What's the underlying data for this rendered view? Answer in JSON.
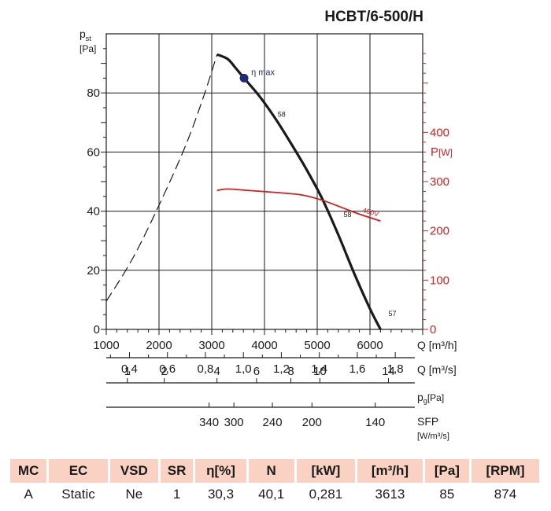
{
  "title": "HCBT/6-500/H",
  "chart_data": {
    "type": "line",
    "title": "HCBT/6-500/H",
    "x_axis": {
      "label": "Q [m³/h]",
      "range": [
        1000,
        7000
      ],
      "ticks": [
        "1000",
        "2000",
        "3000",
        "4000",
        "5000",
        "6000"
      ]
    },
    "y_axis_left": {
      "label_main": "p",
      "label_sub": "st",
      "label_unit": "[Pa]",
      "range": [
        0,
        100
      ],
      "ticks": [
        "0",
        "20",
        "40",
        "60",
        "80"
      ]
    },
    "y_axis_right": {
      "label_main": "P",
      "label_unit": "[W]",
      "range": [
        0,
        600
      ],
      "ticks": [
        "0",
        "100",
        "200",
        "300",
        "400"
      ]
    },
    "secondary_axes": [
      {
        "label": "Q [m³/s]",
        "ticks": [
          {
            "value": 0.4,
            "label": "0,4"
          },
          {
            "value": 0.6,
            "label": "0,6"
          },
          {
            "value": 0.8,
            "label": "0,8"
          },
          {
            "value": 1.0,
            "label": "1,0"
          },
          {
            "value": 1.2,
            "label": "1,2"
          },
          {
            "value": 1.4,
            "label": "1,4"
          },
          {
            "value": 1.6,
            "label": "1,6"
          },
          {
            "value": 1.8,
            "label": "1,8"
          }
        ]
      },
      {
        "label_main": "p",
        "label_sub": "g",
        "label_unit": "[Pa]",
        "ticks": [
          {
            "q": 1400,
            "label": "1"
          },
          {
            "q": 2100,
            "label": "2"
          },
          {
            "q": 3100,
            "label": "4"
          },
          {
            "q": 3850,
            "label": "6"
          },
          {
            "q": 4500,
            "label": "8"
          },
          {
            "q": 5050,
            "label": "10"
          },
          {
            "q": 6350,
            "label": "14"
          }
        ]
      },
      {
        "label": "SFP",
        "unit": "[W/m³/s]",
        "ticks": [
          {
            "q": 2950,
            "label": "340"
          },
          {
            "q": 3420,
            "label": "300"
          },
          {
            "q": 4150,
            "label": "240"
          },
          {
            "q": 4900,
            "label": "200"
          },
          {
            "q": 6100,
            "label": "140"
          }
        ]
      }
    ],
    "series": [
      {
        "kind": "stall-region-dashed",
        "axis": "left",
        "points": [
          [
            1000,
            9.5
          ],
          [
            1500,
            24
          ],
          [
            2000,
            42
          ],
          [
            2500,
            62
          ],
          [
            2850,
            79
          ],
          [
            3100,
            93
          ]
        ]
      },
      {
        "kind": "pressure",
        "axis": "left",
        "points": [
          [
            3100,
            93
          ],
          [
            3300,
            91.5
          ],
          [
            3450,
            88.5
          ],
          [
            3613,
            85
          ],
          [
            3900,
            79
          ],
          [
            4200,
            71.5
          ],
          [
            4500,
            63
          ],
          [
            4800,
            54
          ],
          [
            5100,
            44
          ],
          [
            5400,
            32
          ],
          [
            5700,
            19
          ],
          [
            6000,
            7
          ],
          [
            6200,
            0
          ]
        ]
      },
      {
        "kind": "power",
        "axis": "right",
        "name": "400V",
        "points": [
          [
            3100,
            282
          ],
          [
            3300,
            285
          ],
          [
            3700,
            282
          ],
          [
            4200,
            278
          ],
          [
            4700,
            273
          ],
          [
            5100,
            262
          ],
          [
            5500,
            246
          ],
          [
            5800,
            234
          ],
          [
            6200,
            220
          ]
        ]
      }
    ],
    "annotations": [
      {
        "text": "η max",
        "x": 3613,
        "y": 85,
        "marker": true
      },
      {
        "text": "58",
        "x": 4250,
        "y": 72
      },
      {
        "text": "58",
        "x": 5500,
        "y": 38
      },
      {
        "text": "57",
        "x": 6350,
        "y": 4.5
      }
    ]
  },
  "table": {
    "headers": [
      "MC",
      "EC",
      "VSD",
      "SR",
      "η[%]",
      "N",
      "[kW]",
      "[m³/h]",
      "[Pa]",
      "[RPM]"
    ],
    "row": [
      "A",
      "Static",
      "Ne",
      "1",
      "30,3",
      "40,1",
      "0,281",
      "3613",
      "85",
      "874"
    ]
  },
  "colors": {
    "curve": "#1a1a1a",
    "power": "#d21e1e",
    "marker": "#1f2a7a",
    "header_bg": "#f9d2c3"
  }
}
